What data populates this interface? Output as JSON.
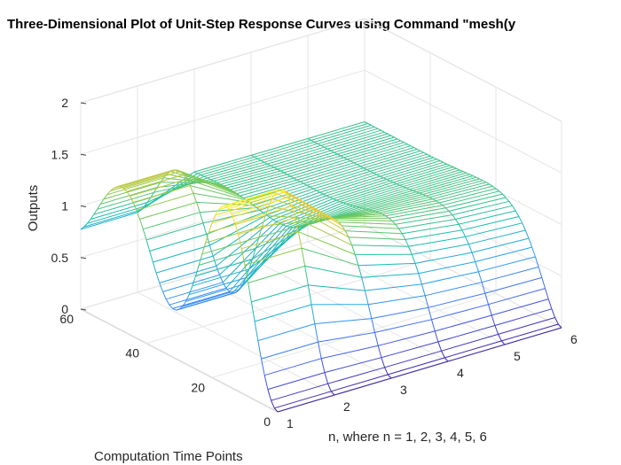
{
  "chart_data": {
    "type": "mesh3d",
    "title": "Three-Dimensional Plot of Unit-Step Response Curves using Command \"mesh(y",
    "xlabel": "n, where n = 1, 2, 3, 4, 5, 6",
    "ylabel": "Computation Time Points",
    "zlabel": "Outputs",
    "xlim": [
      1,
      6
    ],
    "ylim": [
      0,
      60
    ],
    "zlim": [
      0,
      2
    ],
    "xticks": [
      "1",
      "2",
      "3",
      "4",
      "5",
      "6"
    ],
    "yticks": [
      "0",
      "20",
      "40",
      "60"
    ],
    "zticks": [
      "0",
      "0.5",
      "1",
      "1.5",
      "2"
    ],
    "grid": true,
    "colormap": "parula",
    "colormap_stops": [
      "#3e26a8",
      "#4265f5",
      "#2f9df4",
      "#14bfad",
      "#7cc94e",
      "#f2c934",
      "#f9fb15"
    ],
    "series_description": "Unit-step response mesh: peaks near 1.8 at n = 1 and n = 2, settling toward 1 at n = 3 to 6 as time points increase; all curves start at 0."
  }
}
